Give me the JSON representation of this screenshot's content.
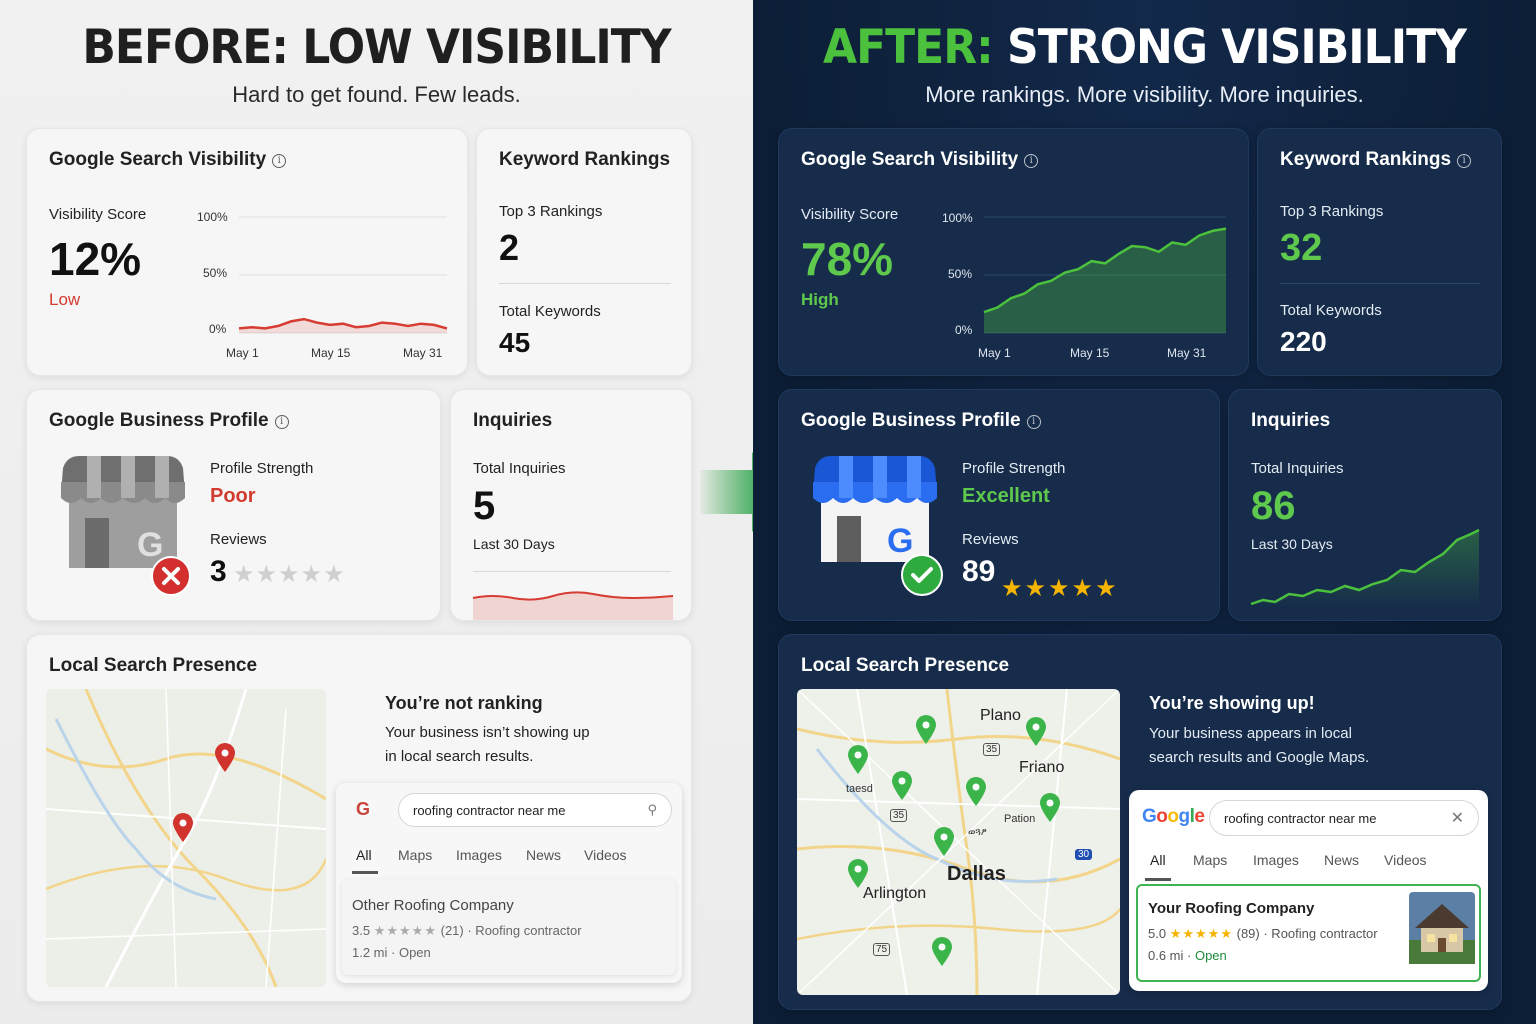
{
  "before": {
    "title": "BEFORE: LOW VISIBILITY",
    "subtitle": "Hard to get found. Few leads.",
    "visibility": {
      "title": "Google Search Visibility",
      "score_label": "Visibility Score",
      "score": "12%",
      "status": "Low",
      "y_ticks": [
        "100%",
        "50%",
        "0%"
      ],
      "x_ticks": [
        "May 1",
        "May 15",
        "May 31"
      ],
      "series": [
        4,
        5,
        4,
        6,
        10,
        12,
        9,
        7,
        8,
        5,
        6,
        9,
        8,
        6,
        8,
        7,
        4
      ]
    },
    "keywords": {
      "title": "Keyword Rankings",
      "top3_label": "Top 3 Rankings",
      "top3": "2",
      "total_label": "Total Keywords",
      "total": "45"
    },
    "gbp": {
      "title": "Google Business Profile",
      "strength_label": "Profile Strength",
      "strength": "Poor",
      "reviews_label": "Reviews",
      "reviews": "3",
      "stars_filled": 0
    },
    "inquiries": {
      "title": "Inquiries",
      "label": "Total Inquiries",
      "value": "5",
      "period": "Last 30 Days"
    },
    "local": {
      "title": "Local Search Presence",
      "headline": "You’re not ranking",
      "desc_line1": "Your business isn’t showing up",
      "desc_line2": "in local search results.",
      "search_query": "roofing contractor near me",
      "tabs": [
        "All",
        "Maps",
        "Images",
        "News",
        "Videos"
      ],
      "result_name": "Other Roofing Company",
      "result_rating": "3.5",
      "result_count": "(21)",
      "result_type": "· Roofing contractor",
      "result_meta": "1.2 mi · Open"
    }
  },
  "after": {
    "title_hl": "AFTER:",
    "title_rest": "STRONG VISIBILITY",
    "subtitle": "More rankings. More visibility. More inquiries.",
    "visibility": {
      "title": "Google Search Visibility",
      "score_label": "Visibility Score",
      "score": "78%",
      "status": "High",
      "y_ticks": [
        "100%",
        "50%",
        "0%"
      ],
      "x_ticks": [
        "May 1",
        "May 15",
        "May 31"
      ],
      "series": [
        18,
        22,
        30,
        34,
        42,
        45,
        52,
        55,
        62,
        60,
        68,
        75,
        74,
        70,
        78,
        76,
        84,
        88,
        90
      ]
    },
    "keywords": {
      "title": "Keyword Rankings",
      "top3_label": "Top 3 Rankings",
      "top3": "32",
      "total_label": "Total Keywords",
      "total": "220"
    },
    "gbp": {
      "title": "Google Business Profile",
      "strength_label": "Profile Strength",
      "strength": "Excellent",
      "reviews_label": "Reviews",
      "reviews": "89",
      "stars_filled": 5
    },
    "inquiries": {
      "title": "Inquiries",
      "label": "Total Inquiries",
      "value": "86",
      "period": "Last 30 Days"
    },
    "local": {
      "title": "Local Search Presence",
      "headline": "You’re showing up!",
      "desc_line1": "Your business appears in local",
      "desc_line2": "search results and Google Maps.",
      "google_logo": "Google",
      "search_query": "roofing contractor near me",
      "tabs": [
        "All",
        "Maps",
        "Images",
        "News",
        "Videos"
      ],
      "result_name": "Your Roofing Company",
      "result_rating": "5.0",
      "result_count": "(89)",
      "result_type": "· Roofing contractor",
      "result_distance": "0.6 mi ·",
      "result_open": "Open",
      "map_labels": {
        "plano": "Plano",
        "friano": "Friano",
        "dallas": "Dallas",
        "arlington": "Arlington",
        "pation": "Pation",
        "taesd": "taesd",
        "hwy35": "35",
        "i30": "30",
        "hwy75": "75",
        "hwy85": "35",
        "small1": "ወጓፆ"
      }
    }
  },
  "colors": {
    "green": "#5ec94c",
    "red": "#d23b2f",
    "navy": "#0c1e36",
    "card_dark": "#162c4a",
    "star_gold": "#f4b400"
  }
}
